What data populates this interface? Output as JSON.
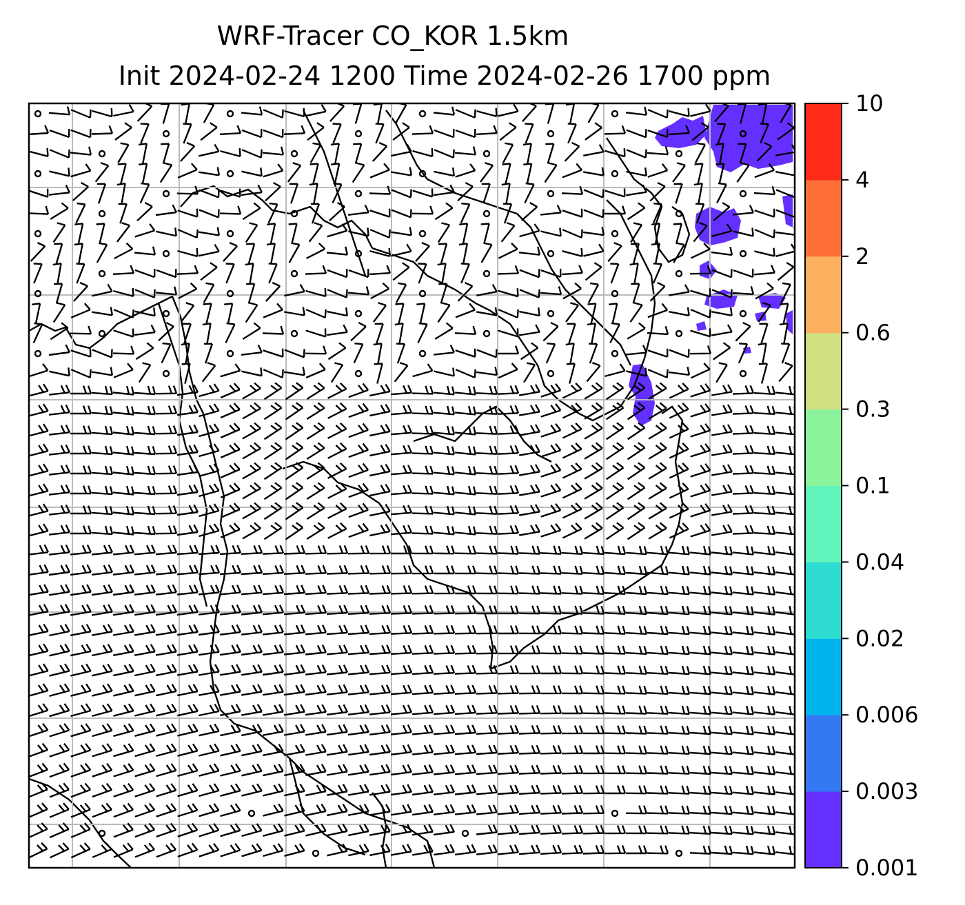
{
  "title": {
    "line1": "WRF-Tracer CO_KOR 1.5km",
    "line2": "Init 2024-02-24 1200 Time 2024-02-26 1700 ppm"
  },
  "colorbar": {
    "levels": [
      "0.001",
      "0.003",
      "0.006",
      "0.02",
      "0.04",
      "0.1",
      "0.3",
      "0.6",
      "2",
      "4",
      "10"
    ],
    "colors": [
      "#6430ff",
      "#3479f2",
      "#00b4ec",
      "#2ddbd1",
      "#60f3bc",
      "#8cf39d",
      "#d0e081",
      "#fdb05f",
      "#ff7039",
      "#ff2a18"
    ]
  },
  "map": {
    "tracer_color": "#6430ff",
    "grid_color": "#bbbbbb",
    "coast_color": "#000000"
  }
}
